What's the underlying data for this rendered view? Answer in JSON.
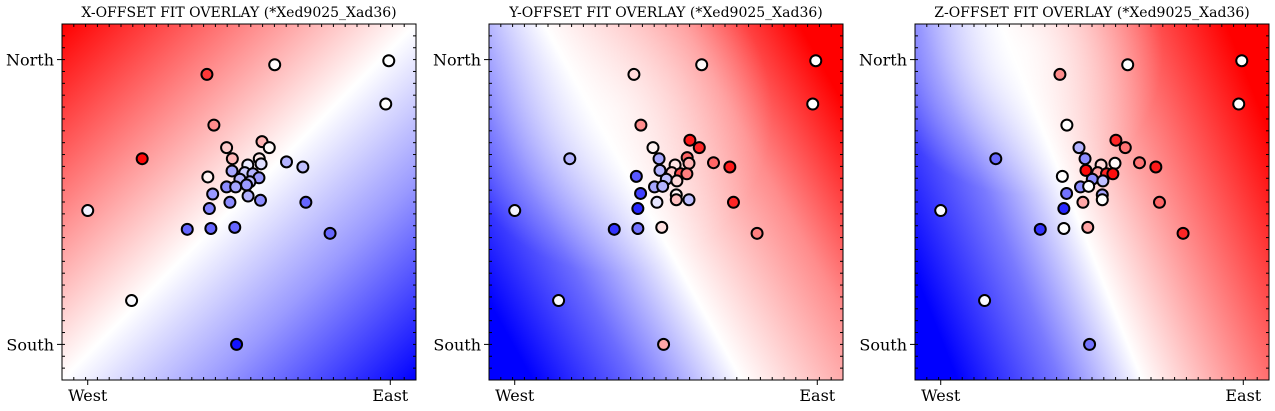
{
  "figure": {
    "background": "#ffffff",
    "colormap": [
      "#0000ff",
      "#ffffff",
      "#ff0000"
    ],
    "x_tick_labels": [
      "West",
      "East"
    ],
    "y_tick_labels": [
      "North",
      "South"
    ],
    "minor_ticks": true
  },
  "chart_data": [
    {
      "type": "scatter",
      "title": "X-OFFSET FIT OVERLAY (*Xed9025_Xad36)",
      "x_ticks": [
        {
          "label": "West",
          "x": 0.0
        },
        {
          "label": "East",
          "x": 1.0
        }
      ],
      "y_ticks": [
        {
          "label": "North",
          "y": 1.0
        },
        {
          "label": "South",
          "y": 0.0
        }
      ],
      "xlim": [
        -0.085,
        1.085
      ],
      "ylim": [
        -0.125,
        1.125
      ],
      "grid": false,
      "background_field": {
        "type": "gradient",
        "red_corner": "top-left",
        "blue_corner": "bottom-right"
      },
      "points": [
        {
          "x": 0.995,
          "y": 0.996,
          "v": 0.0
        },
        {
          "x": 0.618,
          "y": 0.982,
          "v": 0.02
        },
        {
          "x": 0.394,
          "y": 0.948,
          "v": 0.78
        },
        {
          "x": 0.985,
          "y": 0.844,
          "v": 0.0
        },
        {
          "x": 0.417,
          "y": 0.77,
          "v": 0.45
        },
        {
          "x": 0.459,
          "y": 0.691,
          "v": 0.2
        },
        {
          "x": 0.576,
          "y": 0.712,
          "v": 0.3
        },
        {
          "x": 0.6,
          "y": 0.691,
          "v": 0.02
        },
        {
          "x": 0.18,
          "y": 0.652,
          "v": 0.97
        },
        {
          "x": 0.478,
          "y": 0.652,
          "v": 0.28
        },
        {
          "x": 0.567,
          "y": 0.652,
          "v": 0.08
        },
        {
          "x": 0.529,
          "y": 0.63,
          "v": -0.08
        },
        {
          "x": 0.573,
          "y": 0.634,
          "v": -0.12
        },
        {
          "x": 0.657,
          "y": 0.641,
          "v": -0.3
        },
        {
          "x": 0.711,
          "y": 0.623,
          "v": -0.25
        },
        {
          "x": 0.477,
          "y": 0.609,
          "v": -0.35
        },
        {
          "x": 0.519,
          "y": 0.603,
          "v": -0.2
        },
        {
          "x": 0.546,
          "y": 0.599,
          "v": -0.3
        },
        {
          "x": 0.397,
          "y": 0.588,
          "v": 0.05
        },
        {
          "x": 0.503,
          "y": 0.58,
          "v": -0.3
        },
        {
          "x": 0.566,
          "y": 0.585,
          "v": -0.4
        },
        {
          "x": 0.536,
          "y": 0.571,
          "v": -0.25
        },
        {
          "x": 0.459,
          "y": 0.553,
          "v": -0.45
        },
        {
          "x": 0.489,
          "y": 0.553,
          "v": -0.35
        },
        {
          "x": 0.525,
          "y": 0.56,
          "v": -0.4
        },
        {
          "x": 0.413,
          "y": 0.528,
          "v": -0.4
        },
        {
          "x": 0.53,
          "y": 0.521,
          "v": -0.3
        },
        {
          "x": 0.571,
          "y": 0.506,
          "v": -0.45
        },
        {
          "x": 0.47,
          "y": 0.499,
          "v": -0.45
        },
        {
          "x": 0.721,
          "y": 0.499,
          "v": -0.6
        },
        {
          "x": 0.0,
          "y": 0.47,
          "v": -0.05
        },
        {
          "x": 0.402,
          "y": 0.477,
          "v": -0.5
        },
        {
          "x": 0.407,
          "y": 0.407,
          "v": -0.6
        },
        {
          "x": 0.486,
          "y": 0.411,
          "v": -0.6
        },
        {
          "x": 0.329,
          "y": 0.404,
          "v": -0.6
        },
        {
          "x": 0.801,
          "y": 0.39,
          "v": -0.6
        },
        {
          "x": 0.145,
          "y": 0.154,
          "v": -0.02
        },
        {
          "x": 0.492,
          "y": 0.0,
          "v": -0.92
        }
      ]
    },
    {
      "type": "scatter",
      "title": "Y-OFFSET FIT OVERLAY (*Xed9025_Xad36)",
      "x_ticks": [
        {
          "label": "West",
          "x": 0.0
        },
        {
          "label": "East",
          "x": 1.0
        }
      ],
      "y_ticks": [
        {
          "label": "North",
          "y": 1.0
        },
        {
          "label": "South",
          "y": 0.0
        }
      ],
      "xlim": [
        -0.085,
        1.085
      ],
      "ylim": [
        -0.125,
        1.125
      ],
      "grid": false,
      "background_field": {
        "type": "gradient",
        "red_corner": "right",
        "blue_corner": "bottom-left"
      },
      "points": [
        {
          "x": 0.995,
          "y": 0.996,
          "v": 0.0
        },
        {
          "x": 0.618,
          "y": 0.982,
          "v": 0.02
        },
        {
          "x": 0.394,
          "y": 0.948,
          "v": 0.15
        },
        {
          "x": 0.985,
          "y": 0.844,
          "v": 0.0
        },
        {
          "x": 0.417,
          "y": 0.77,
          "v": 0.45
        },
        {
          "x": 0.579,
          "y": 0.717,
          "v": 0.9
        },
        {
          "x": 0.61,
          "y": 0.691,
          "v": 0.85
        },
        {
          "x": 0.457,
          "y": 0.691,
          "v": 0.05
        },
        {
          "x": 0.182,
          "y": 0.652,
          "v": -0.3
        },
        {
          "x": 0.477,
          "y": 0.652,
          "v": -0.35
        },
        {
          "x": 0.57,
          "y": 0.656,
          "v": 0.6
        },
        {
          "x": 0.657,
          "y": 0.638,
          "v": 0.6
        },
        {
          "x": 0.711,
          "y": 0.623,
          "v": 0.9
        },
        {
          "x": 0.53,
          "y": 0.63,
          "v": 0.1
        },
        {
          "x": 0.576,
          "y": 0.636,
          "v": 0.3
        },
        {
          "x": 0.48,
          "y": 0.611,
          "v": -0.3
        },
        {
          "x": 0.519,
          "y": 0.603,
          "v": 0.2
        },
        {
          "x": 0.548,
          "y": 0.599,
          "v": 0.7
        },
        {
          "x": 0.569,
          "y": 0.599,
          "v": 0.5
        },
        {
          "x": 0.402,
          "y": 0.59,
          "v": -0.65
        },
        {
          "x": 0.501,
          "y": 0.58,
          "v": -0.25
        },
        {
          "x": 0.536,
          "y": 0.574,
          "v": 0.15
        },
        {
          "x": 0.462,
          "y": 0.553,
          "v": -0.35
        },
        {
          "x": 0.489,
          "y": 0.555,
          "v": -0.3
        },
        {
          "x": 0.416,
          "y": 0.53,
          "v": -0.75
        },
        {
          "x": 0.534,
          "y": 0.525,
          "v": 0.05
        },
        {
          "x": 0.576,
          "y": 0.508,
          "v": -0.25
        },
        {
          "x": 0.534,
          "y": 0.508,
          "v": 0.25
        },
        {
          "x": 0.47,
          "y": 0.499,
          "v": -0.1
        },
        {
          "x": 0.723,
          "y": 0.499,
          "v": 0.85
        },
        {
          "x": 0.0,
          "y": 0.47,
          "v": -0.05
        },
        {
          "x": 0.407,
          "y": 0.477,
          "v": -0.85
        },
        {
          "x": 0.407,
          "y": 0.407,
          "v": -0.55
        },
        {
          "x": 0.486,
          "y": 0.411,
          "v": 0.12
        },
        {
          "x": 0.329,
          "y": 0.404,
          "v": -0.8
        },
        {
          "x": 0.801,
          "y": 0.39,
          "v": 0.5
        },
        {
          "x": 0.145,
          "y": 0.154,
          "v": -0.02
        },
        {
          "x": 0.492,
          "y": 0.0,
          "v": 0.35
        }
      ]
    },
    {
      "type": "scatter",
      "title": "Z-OFFSET FIT OVERLAY (*Xed9025_Xad36)",
      "x_ticks": [
        {
          "label": "West",
          "x": 0.0
        },
        {
          "label": "East",
          "x": 1.0
        }
      ],
      "y_ticks": [
        {
          "label": "North",
          "y": 1.0
        },
        {
          "label": "South",
          "y": 0.0
        }
      ],
      "xlim": [
        -0.085,
        1.085
      ],
      "ylim": [
        -0.125,
        1.125
      ],
      "grid": false,
      "background_field": {
        "type": "gradient",
        "red_corner": "right",
        "blue_corner": "bottom-left"
      },
      "points": [
        {
          "x": 0.995,
          "y": 0.996,
          "v": 0.0
        },
        {
          "x": 0.618,
          "y": 0.982,
          "v": 0.0
        },
        {
          "x": 0.394,
          "y": 0.948,
          "v": 0.45
        },
        {
          "x": 0.985,
          "y": 0.844,
          "v": 0.0
        },
        {
          "x": 0.417,
          "y": 0.77,
          "v": 0.0
        },
        {
          "x": 0.579,
          "y": 0.717,
          "v": 0.85
        },
        {
          "x": 0.61,
          "y": 0.691,
          "v": 0.55
        },
        {
          "x": 0.457,
          "y": 0.691,
          "v": -0.3
        },
        {
          "x": 0.182,
          "y": 0.652,
          "v": -0.6
        },
        {
          "x": 0.477,
          "y": 0.652,
          "v": -0.45
        },
        {
          "x": 0.657,
          "y": 0.638,
          "v": 0.55
        },
        {
          "x": 0.711,
          "y": 0.623,
          "v": 0.9
        },
        {
          "x": 0.53,
          "y": 0.63,
          "v": 0.15
        },
        {
          "x": 0.576,
          "y": 0.636,
          "v": 0.02
        },
        {
          "x": 0.48,
          "y": 0.611,
          "v": 0.97
        },
        {
          "x": 0.519,
          "y": 0.603,
          "v": 0.35
        },
        {
          "x": 0.548,
          "y": 0.599,
          "v": 0.85
        },
        {
          "x": 0.569,
          "y": 0.599,
          "v": 0.95
        },
        {
          "x": 0.402,
          "y": 0.59,
          "v": 0.0
        },
        {
          "x": 0.501,
          "y": 0.58,
          "v": -0.45
        },
        {
          "x": 0.536,
          "y": 0.574,
          "v": -0.25
        },
        {
          "x": 0.462,
          "y": 0.553,
          "v": -0.45
        },
        {
          "x": 0.489,
          "y": 0.555,
          "v": 0.0
        },
        {
          "x": 0.416,
          "y": 0.53,
          "v": -0.55
        },
        {
          "x": 0.534,
          "y": 0.525,
          "v": -0.35
        },
        {
          "x": 0.723,
          "y": 0.499,
          "v": 0.6
        },
        {
          "x": 0.47,
          "y": 0.499,
          "v": 0.35
        },
        {
          "x": 0.534,
          "y": 0.508,
          "v": 0.0
        },
        {
          "x": 0.0,
          "y": 0.47,
          "v": -0.02
        },
        {
          "x": 0.407,
          "y": 0.477,
          "v": -0.85
        },
        {
          "x": 0.407,
          "y": 0.407,
          "v": 0.0
        },
        {
          "x": 0.486,
          "y": 0.411,
          "v": 0.35
        },
        {
          "x": 0.329,
          "y": 0.404,
          "v": -0.8
        },
        {
          "x": 0.801,
          "y": 0.39,
          "v": 0.85
        },
        {
          "x": 0.145,
          "y": 0.154,
          "v": -0.02
        },
        {
          "x": 0.492,
          "y": 0.0,
          "v": -0.55
        }
      ]
    }
  ]
}
